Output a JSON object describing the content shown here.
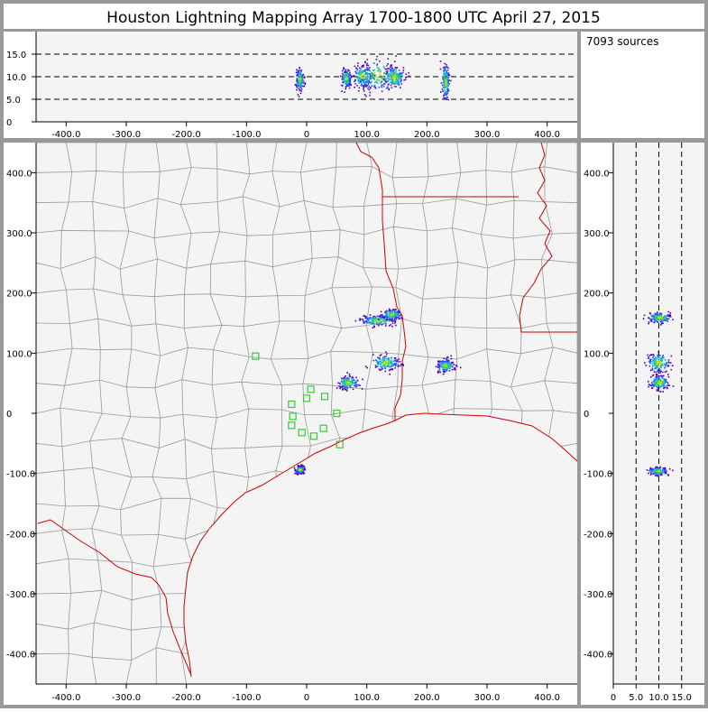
{
  "title": "Houston Lightning Mapping Array   1700-1800 UTC  April 27, 2015",
  "source_count_label": "7093 sources",
  "colors": {
    "frame": "#999999",
    "panel_bg": "#f4f4f4",
    "county_line": "#999999",
    "state_line": "#cc0000",
    "station": "#33cc33",
    "axis": "#000000"
  },
  "chart_data": [
    {
      "type": "scatter",
      "panel": "altitude-vs-east-west",
      "xlabel": "",
      "ylabel": "",
      "xlim": [
        -450,
        450
      ],
      "ylim": [
        0,
        20
      ],
      "x_ticks": [
        -400,
        -300,
        -200,
        -100,
        0,
        100,
        200,
        300,
        400
      ],
      "x_tick_labels": [
        "-400.0",
        "-300.0",
        "-200.0",
        "-100.0",
        "0",
        "100.0",
        "200.0",
        "300.0",
        "400.0"
      ],
      "y_ticks": [
        0,
        5,
        10,
        15
      ],
      "y_tick_labels": [
        "0",
        "5.0",
        "10.0",
        "15.0"
      ],
      "dashed_reference_lines": [
        5,
        10,
        15
      ],
      "clusters": [
        {
          "x": -12,
          "y": 9.5,
          "sx": 3,
          "sy": 1.2
        },
        {
          "x": 65,
          "y": 9.8,
          "sx": 4,
          "sy": 1.0
        },
        {
          "x": 92,
          "y": 10.2,
          "sx": 8,
          "sy": 1.3
        },
        {
          "x": 118,
          "y": 10.4,
          "sx": 16,
          "sy": 1.7
        },
        {
          "x": 145,
          "y": 10.0,
          "sx": 8,
          "sy": 1.2
        },
        {
          "x": 230,
          "y": 9.0,
          "sx": 3,
          "sy": 2.0
        }
      ]
    },
    {
      "type": "scatter",
      "panel": "plan-view-map",
      "xlabel": "",
      "ylabel": "",
      "xlim": [
        -450,
        450
      ],
      "ylim": [
        -450,
        450
      ],
      "x_ticks": [
        -400,
        -300,
        -200,
        -100,
        0,
        100,
        200,
        300,
        400
      ],
      "x_tick_labels": [
        "-400.0",
        "-300.0",
        "-200.0",
        "-100.0",
        "0",
        "100.0",
        "200.0",
        "300.0",
        "400.0"
      ],
      "y_ticks": [
        400,
        300,
        200,
        100,
        0,
        -100,
        -200,
        -300,
        -400
      ],
      "y_tick_labels": [
        "400.0",
        "300.0",
        "200.0",
        "100.0",
        "0",
        "-100.0",
        "-200.0",
        "-300.0",
        "-400.0"
      ],
      "clusters": [
        {
          "x": 118,
          "y": 155,
          "sx": 14,
          "sy": 4
        },
        {
          "x": 140,
          "y": 165,
          "sx": 8,
          "sy": 4
        },
        {
          "x": 68,
          "y": 52,
          "sx": 9,
          "sy": 5
        },
        {
          "x": 130,
          "y": 85,
          "sx": 11,
          "sy": 6
        },
        {
          "x": 230,
          "y": 80,
          "sx": 7,
          "sy": 5
        },
        {
          "x": -12,
          "y": -93,
          "sx": 4,
          "sy": 3
        }
      ],
      "stations": [
        {
          "x": -85,
          "y": 95
        },
        {
          "x": -25,
          "y": 15
        },
        {
          "x": 7,
          "y": 40
        },
        {
          "x": 0,
          "y": 25
        },
        {
          "x": 30,
          "y": 28
        },
        {
          "x": -23,
          "y": -5
        },
        {
          "x": -25,
          "y": -20
        },
        {
          "x": -8,
          "y": -32
        },
        {
          "x": 12,
          "y": -38
        },
        {
          "x": 28,
          "y": -25
        },
        {
          "x": 50,
          "y": 0
        },
        {
          "x": 55,
          "y": -52
        }
      ]
    },
    {
      "type": "scatter",
      "panel": "north-south-vs-altitude",
      "xlabel": "",
      "ylabel": "",
      "xlim": [
        0,
        20
      ],
      "ylim": [
        -450,
        450
      ],
      "x_ticks": [
        0,
        5,
        10,
        15
      ],
      "x_tick_labels": [
        "0",
        "5.0",
        "10.0",
        "15.0"
      ],
      "y_ticks": [
        400,
        300,
        200,
        100,
        0,
        -100,
        -200,
        -300,
        -400
      ],
      "y_tick_labels": [
        "400.0",
        "300.0",
        "200.0",
        "100.0",
        "0",
        "-100.0",
        "-200.0",
        "-300.0",
        "-400.0"
      ],
      "dashed_reference_lines": [
        5,
        10,
        15
      ],
      "clusters": [
        {
          "x": 10.0,
          "y": 160,
          "sx": 1.2,
          "sy": 4
        },
        {
          "x": 9.8,
          "y": 85,
          "sx": 1.3,
          "sy": 8
        },
        {
          "x": 10.0,
          "y": 52,
          "sx": 1.0,
          "sy": 6
        },
        {
          "x": 9.7,
          "y": -95,
          "sx": 1.0,
          "sy": 3
        }
      ]
    }
  ]
}
